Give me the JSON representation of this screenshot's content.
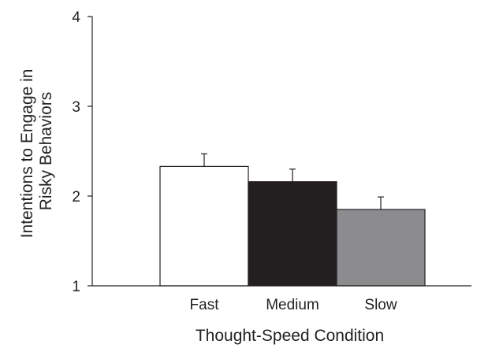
{
  "chart_data": {
    "type": "bar",
    "categories": [
      "Fast",
      "Medium",
      "Slow"
    ],
    "values": [
      2.33,
      2.16,
      1.85
    ],
    "errors": [
      0.14,
      0.14,
      0.14
    ],
    "bar_colors": [
      "#ffffff",
      "#231f20",
      "#8c8b8d"
    ],
    "xlabel": "Thought-Speed Condition",
    "ylabel_lines": [
      "Intentions to Engage in",
      "Risky Behaviors"
    ],
    "ylim": [
      1,
      4
    ],
    "yticks": [
      1,
      2,
      3,
      4
    ],
    "grid": false
  }
}
